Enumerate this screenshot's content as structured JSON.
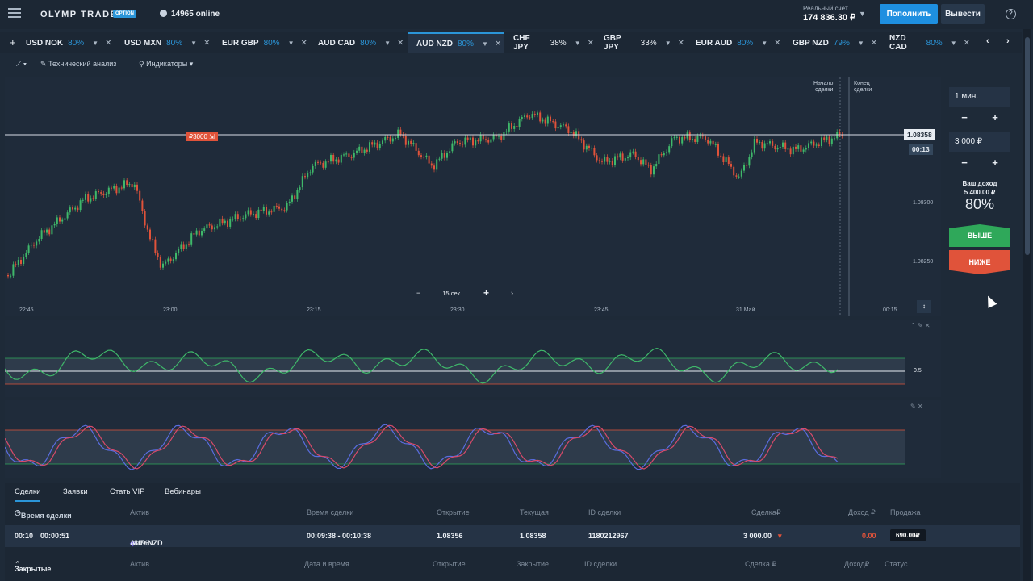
{
  "header": {
    "logo_text": "OLYMP TRADE",
    "logo_badge": "OPTION",
    "online": "14965 online",
    "account_label": "Реальный счёт",
    "balance": "174 836.30 ₽",
    "deposit": "Пополнить",
    "withdraw": "Вывести"
  },
  "tabs": [
    {
      "name": "USD NOK",
      "pct": "80%"
    },
    {
      "name": "USD MXN",
      "pct": "80%"
    },
    {
      "name": "EUR GBP",
      "pct": "80%"
    },
    {
      "name": "AUD CAD",
      "pct": "80%"
    },
    {
      "name": "AUD NZD",
      "pct": "80%"
    },
    {
      "name": "CHF JPY",
      "pct": "38%"
    },
    {
      "name": "GBP JPY",
      "pct": "33%"
    },
    {
      "name": "EUR AUD",
      "pct": "80%"
    },
    {
      "name": "GBP NZD",
      "pct": "79%"
    },
    {
      "name": "NZD CAD",
      "pct": "80%"
    }
  ],
  "toolbar": {
    "analysis": "Технический анализ",
    "indicators": "Индикаторы"
  },
  "chart": {
    "trade_start": [
      "Начало",
      "сделки"
    ],
    "trade_end": [
      "Конец",
      "сделки"
    ],
    "order_tag": "₽3000",
    "current_price": "1.08358",
    "timer": "00:13",
    "price_levels": [
      "1.08300",
      "1.08250"
    ],
    "time_labels": [
      "22:45",
      "23:00",
      "23:15",
      "23:30",
      "23:45",
      "31 Май",
      "00:15"
    ],
    "zoom_value": "15 сек.",
    "ind1_levels": [
      "0.5"
    ]
  },
  "side": {
    "duration": "1 мин.",
    "amount": "3 000 ₽",
    "income_label": [
      "Ваш доход",
      "5 400.00 ₽"
    ],
    "income_pct": "80%",
    "up": "ВЫШЕ",
    "down": "НИЖЕ"
  },
  "bottom": {
    "tabs": [
      "Сделки",
      "Заявки",
      "Стать VIP",
      "Вебинары"
    ],
    "headers": [
      "Время сделки",
      "Актив",
      "Время сделки",
      "Открытие",
      "Текущая",
      "ID сделки",
      "Сделка₽",
      "Доход ₽",
      "Продажа"
    ],
    "row": {
      "t1": "00:10",
      "t2": "00:00:51",
      "asset": "AUD NZD",
      "pct": "80%",
      "period": "00:09:38 - 00:10:38",
      "open": "1.08356",
      "current": "1.08358",
      "id": "1180212967",
      "amount": "3 000.00",
      "income": "0.00",
      "sell": "690.00₽"
    },
    "closed_label": "Закрытые",
    "closed_headers": [
      "Актив",
      "Дата и время",
      "Открытие",
      "Закрытие",
      "ID сделки",
      "Сделка ₽",
      "Доход₽",
      "Статус"
    ]
  },
  "colors": {
    "accent": "#2b95d8",
    "up": "#2fa85a",
    "down": "#e0533a"
  }
}
